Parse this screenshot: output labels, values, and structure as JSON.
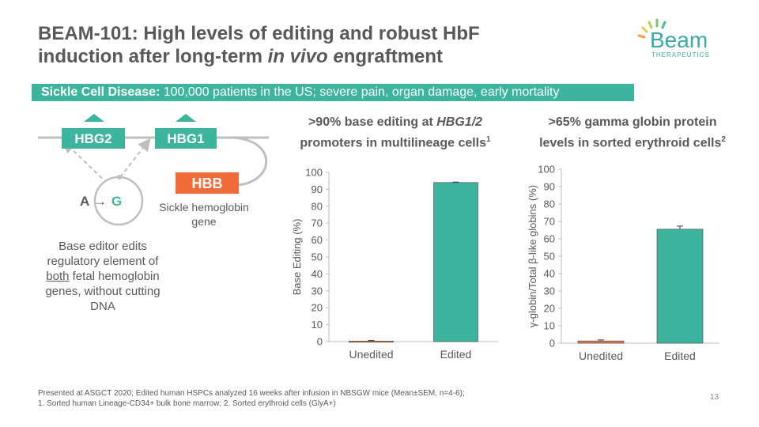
{
  "slide": {
    "title_part1": "BEAM-101: High levels of editing and robust HbF",
    "title_part2_prefix": "induction after long-term ",
    "title_part2_italic": "in vivo e",
    "title_part2_suffix": "ngraftment",
    "logo_word": "Beam",
    "logo_sub": "THERAPEUTICS",
    "page_number": "13"
  },
  "banner": {
    "bold": "Sickle Cell Disease:",
    "text": " 100,000 patients in the US; severe pain, organ damage, early mortality"
  },
  "diagram": {
    "hbg2": "HBG2",
    "hbg1": "HBG1",
    "hbb": "HBB",
    "edit_from": "A",
    "arrow": "→",
    "edit_to": "G",
    "hbb_caption_line1": "Sickle hemoglobin",
    "hbb_caption_line2": "gene",
    "desc_line1": "Base editor edits",
    "desc_line2": "regulatory element of",
    "desc_line3_underlined": "both",
    "desc_line3_rest": " fetal hemoglobin",
    "desc_line4": "genes, without cutting",
    "desc_line5": "DNA"
  },
  "chart1_heading": {
    "line1_prefix": ">90% base editing at ",
    "line1_italic": "HBG1/2",
    "line2": "promoters in multilineage cells",
    "sup": "1"
  },
  "chart2_heading": {
    "line1": ">65% gamma globin protein",
    "line2": "levels in sorted erythroid cells",
    "sup": "2"
  },
  "chart_data": [
    {
      "type": "bar",
      "categories": [
        "Unedited",
        "Edited"
      ],
      "values": [
        0.3,
        94
      ],
      "errors": [
        0.4,
        0.3
      ],
      "ylabel": "Base Editing (%)",
      "ylim": [
        0,
        100
      ],
      "yticks": [
        0,
        10,
        20,
        30,
        40,
        50,
        60,
        70,
        80,
        90,
        100
      ],
      "bar_colors": [
        "#E07B4F",
        "#3DB59E"
      ],
      "grid": false
    },
    {
      "type": "bar",
      "categories": [
        "Unedited",
        "Edited"
      ],
      "values": [
        1.3,
        65.5
      ],
      "errors": [
        0.6,
        1.8
      ],
      "ylabel": "γ-globin/Total β-like globins (%)",
      "ylim": [
        0,
        100
      ],
      "yticks": [
        0,
        10,
        20,
        30,
        40,
        50,
        60,
        70,
        80,
        90,
        100
      ],
      "bar_colors": [
        "#E07B4F",
        "#3DB59E"
      ],
      "grid": false
    }
  ],
  "footnote": {
    "line1": "Presented at ASGCT 2020;  Edited human HSPCs analyzed 16 weeks after infusion in NBSGW mice (Mean±SEM, n=4-6);",
    "line2": "1. Sorted human Lineage-CD34+ bulk bone marrow;  2. Sorted erythroid cells (GlyA+)"
  },
  "colors": {
    "teal": "#3DB59E",
    "orange": "#F26B3A",
    "text_gray": "#595959",
    "line_gray": "#BFBFBF"
  }
}
